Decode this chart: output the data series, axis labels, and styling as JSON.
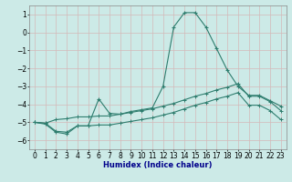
{
  "xlabel": "Humidex (Indice chaleur)",
  "x": [
    0,
    1,
    2,
    3,
    4,
    5,
    6,
    7,
    8,
    9,
    10,
    11,
    12,
    13,
    14,
    15,
    16,
    17,
    18,
    19,
    20,
    21,
    22,
    23
  ],
  "line1": [
    -5.0,
    -5.1,
    -5.55,
    -5.65,
    -5.2,
    -5.2,
    -3.7,
    -4.5,
    -4.55,
    -4.4,
    -4.3,
    -4.2,
    -3.0,
    0.3,
    1.1,
    1.1,
    0.3,
    -0.9,
    -2.1,
    -3.0,
    -3.5,
    -3.5,
    -3.8,
    -4.1
  ],
  "line2": [
    -5.0,
    -5.05,
    -4.85,
    -4.8,
    -4.7,
    -4.7,
    -4.65,
    -4.65,
    -4.55,
    -4.45,
    -4.35,
    -4.25,
    -4.1,
    -3.95,
    -3.75,
    -3.55,
    -3.4,
    -3.2,
    -3.05,
    -2.85,
    -3.55,
    -3.55,
    -3.85,
    -4.35
  ],
  "line3": [
    -5.0,
    -5.05,
    -5.5,
    -5.55,
    -5.2,
    -5.2,
    -5.15,
    -5.15,
    -5.05,
    -4.95,
    -4.85,
    -4.75,
    -4.6,
    -4.45,
    -4.25,
    -4.05,
    -3.9,
    -3.7,
    -3.55,
    -3.35,
    -4.05,
    -4.05,
    -4.35,
    -4.85
  ],
  "line_color": "#2e7d6e",
  "bg_color": "#cceae7",
  "grid_color_major": "#d4b8b8",
  "grid_color_minor": "#d4b8b8",
  "ylim": [
    -6.5,
    1.5
  ],
  "xlim": [
    -0.5,
    23.5
  ],
  "yticks": [
    1,
    0,
    -1,
    -2,
    -3,
    -4,
    -5,
    -6
  ],
  "xticks": [
    0,
    1,
    2,
    3,
    4,
    5,
    6,
    7,
    8,
    9,
    10,
    11,
    12,
    13,
    14,
    15,
    16,
    17,
    18,
    19,
    20,
    21,
    22,
    23
  ],
  "xlabel_color": "#00008b",
  "xlabel_fontsize": 6.0,
  "tick_fontsize": 5.5
}
